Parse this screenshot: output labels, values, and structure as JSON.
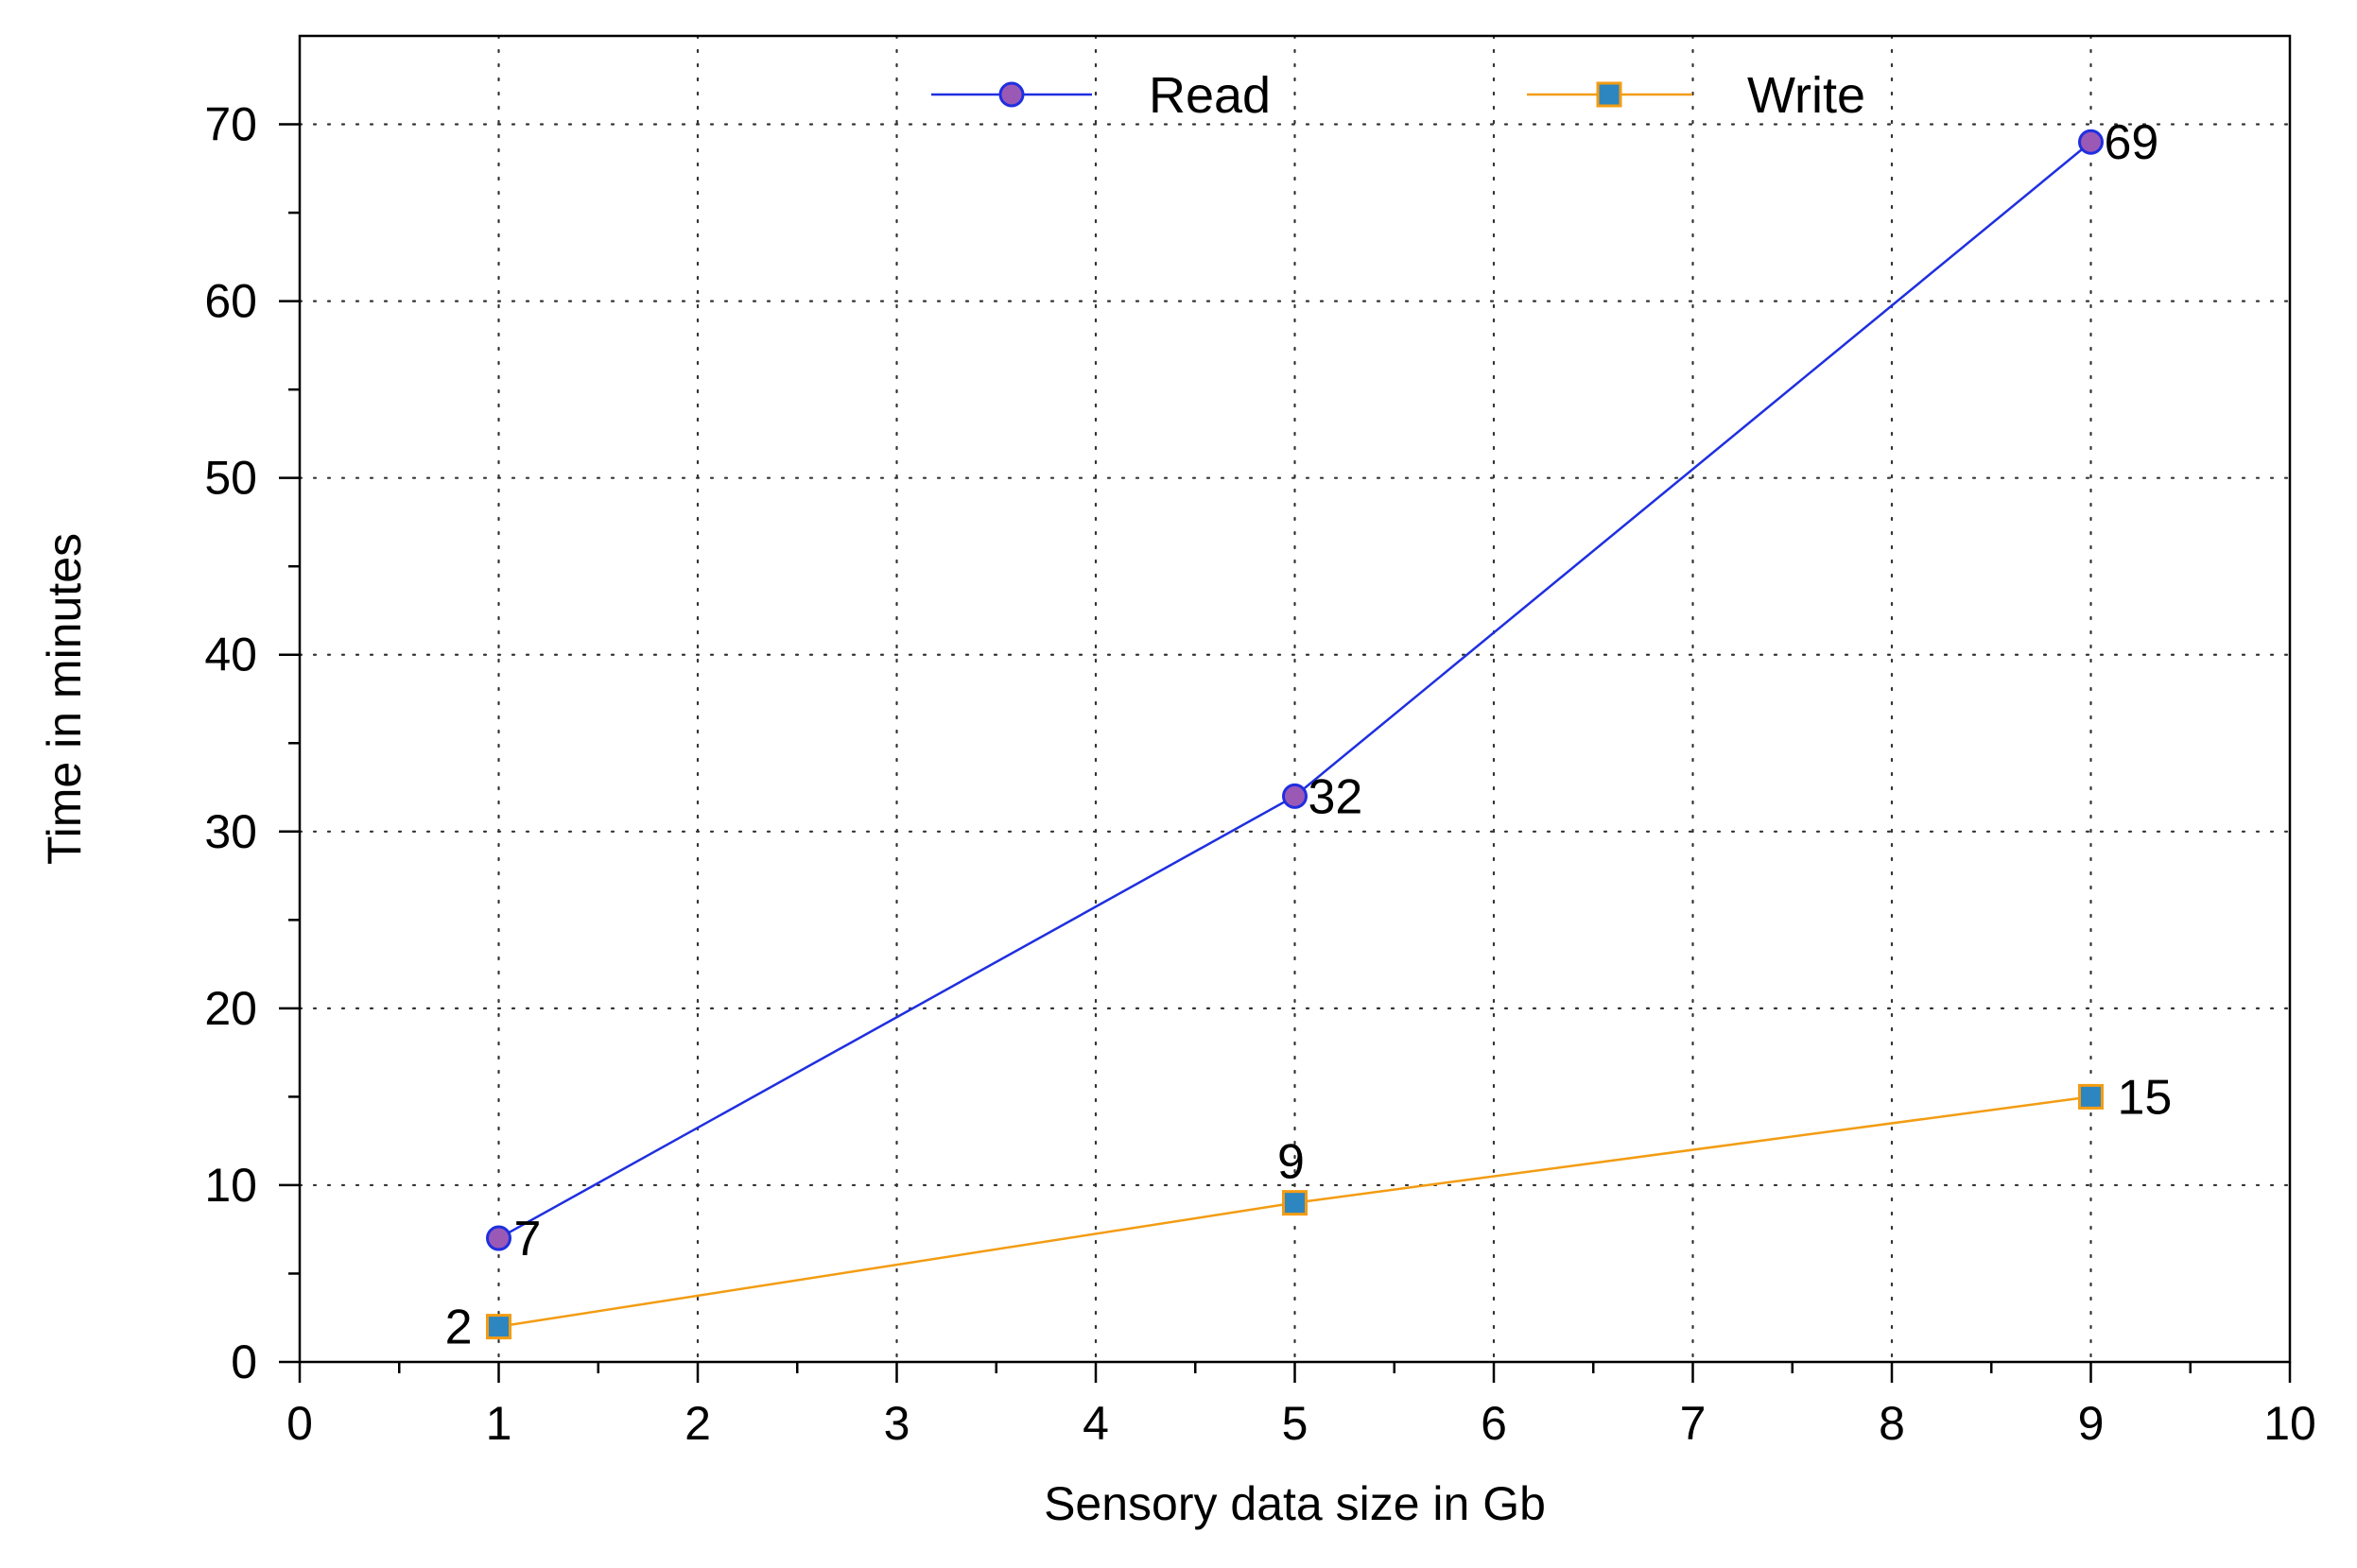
{
  "chart_data": {
    "type": "line",
    "xlabel": "Sensory data size in Gb",
    "ylabel": "Time in minutes",
    "xlim": [
      0,
      10
    ],
    "ylim": [
      0,
      75
    ],
    "x_ticks": [
      "0",
      "1",
      "2",
      "3",
      "4",
      "5",
      "6",
      "7",
      "8",
      "9",
      "10"
    ],
    "y_ticks": [
      "0",
      "10",
      "20",
      "30",
      "40",
      "50",
      "60",
      "70"
    ],
    "grid": true,
    "legend_position": "top",
    "series": [
      {
        "name": "Read",
        "x": [
          1,
          5,
          9
        ],
        "values": [
          7,
          32,
          69
        ],
        "labels": [
          "7",
          "32",
          "69"
        ],
        "line_color": "#1f2fe0",
        "marker": "circle",
        "marker_fill": "#9b59b6",
        "marker_edge": "#1f2fe0"
      },
      {
        "name": "Write",
        "x": [
          1,
          5,
          9
        ],
        "values": [
          2,
          9,
          15
        ],
        "labels": [
          "2",
          "9",
          "15"
        ],
        "line_color": "#f39c12",
        "marker": "square",
        "marker_fill": "#2e86c1",
        "marker_edge": "#f39c12"
      }
    ]
  }
}
